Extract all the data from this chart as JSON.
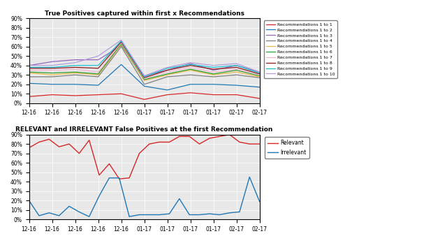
{
  "title1": "True Positives captured within first x Recommendations",
  "title2": "RELEVANT and IRRELEVANT False Positives at the first Recommendation",
  "bg_color": "#e8e8e8",
  "x_labels": [
    "12-16",
    "12-16",
    "12-16",
    "12-16",
    "12-16",
    "01-17",
    "01-17",
    "01-17",
    "01-17",
    "02-17",
    "02-17"
  ],
  "series1": {
    "colors": [
      "#d62728",
      "#1f77b4",
      "#9467bd",
      "#7f7f7f",
      "#e8b84b",
      "#2ca02c",
      "#f7b6d2",
      "#8b1a1a",
      "#17becf",
      "#b39ddb"
    ],
    "labels": [
      "Recommendations 1 to 1",
      "Recommendations 1 to 2",
      "Recommendations 1 to 3",
      "Recommendations 1 to 4",
      "Recommendations 1 to 5",
      "Recommendations 1 to 6",
      "Recommendations 1 to 7",
      "Recommendations 1 to 8",
      "Recommendations 1 to 9",
      "Recommendations 1 to 10"
    ],
    "data": [
      [
        0.07,
        0.09,
        0.08,
        0.09,
        0.1,
        0.04,
        0.09,
        0.11,
        0.09,
        0.09,
        0.05
      ],
      [
        0.21,
        0.2,
        0.2,
        0.19,
        0.41,
        0.18,
        0.14,
        0.2,
        0.2,
        0.19,
        0.17
      ],
      [
        0.4,
        0.44,
        0.46,
        0.46,
        0.61,
        0.29,
        0.35,
        0.42,
        0.35,
        0.4,
        0.33
      ],
      [
        0.28,
        0.28,
        0.3,
        0.28,
        0.6,
        0.2,
        0.28,
        0.3,
        0.28,
        0.3,
        0.27
      ],
      [
        0.32,
        0.3,
        0.32,
        0.3,
        0.62,
        0.24,
        0.3,
        0.35,
        0.3,
        0.33,
        0.28
      ],
      [
        0.33,
        0.32,
        0.33,
        0.31,
        0.63,
        0.25,
        0.31,
        0.36,
        0.31,
        0.35,
        0.29
      ],
      [
        0.35,
        0.35,
        0.36,
        0.33,
        0.64,
        0.26,
        0.33,
        0.38,
        0.33,
        0.36,
        0.3
      ],
      [
        0.37,
        0.37,
        0.38,
        0.37,
        0.65,
        0.27,
        0.35,
        0.4,
        0.36,
        0.38,
        0.31
      ],
      [
        0.38,
        0.38,
        0.4,
        0.4,
        0.66,
        0.28,
        0.37,
        0.41,
        0.38,
        0.4,
        0.32
      ],
      [
        0.4,
        0.4,
        0.43,
        0.5,
        0.67,
        0.29,
        0.38,
        0.43,
        0.4,
        0.42,
        0.33
      ]
    ]
  },
  "series2": {
    "relevant": [
      0.76,
      0.82,
      0.85,
      0.77,
      0.8,
      0.7,
      0.84,
      0.47,
      0.59,
      0.43,
      0.44,
      0.7,
      0.8,
      0.82,
      0.82,
      0.88,
      0.88,
      0.8,
      0.86,
      0.88,
      0.9,
      0.82,
      0.8,
      0.8
    ],
    "irrelevant": [
      0.2,
      0.04,
      0.07,
      0.04,
      0.14,
      0.08,
      0.03,
      0.25,
      0.44,
      0.44,
      0.03,
      0.05,
      0.05,
      0.05,
      0.06,
      0.22,
      0.05,
      0.05,
      0.06,
      0.05,
      0.07,
      0.08,
      0.45,
      0.19
    ],
    "colors": [
      "#d62728",
      "#1f77b4"
    ],
    "labels": [
      "Relevant",
      "Irrelevant"
    ]
  }
}
